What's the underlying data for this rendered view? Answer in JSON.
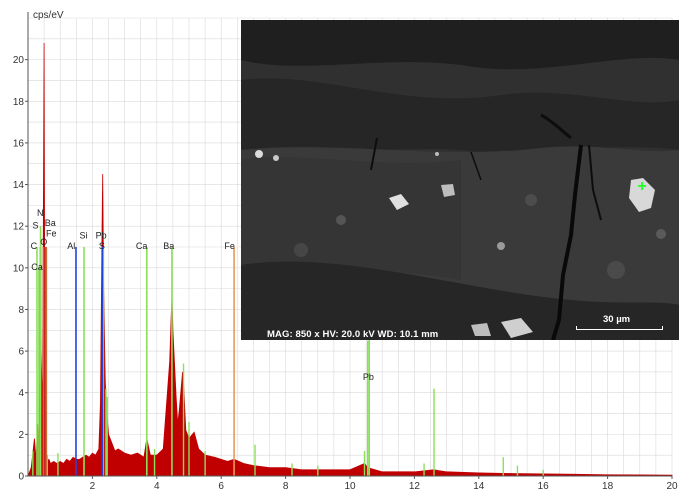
{
  "chart_data": {
    "type": "line",
    "title": "",
    "ylabel": "cps/eV",
    "xlabel": "",
    "xlim": [
      0,
      20
    ],
    "ylim": [
      0,
      22
    ],
    "x_ticks": [
      2,
      4,
      6,
      8,
      10,
      12,
      14,
      16,
      18,
      20
    ],
    "y_ticks": [
      0,
      2,
      4,
      6,
      8,
      10,
      12,
      14,
      16,
      18,
      20
    ],
    "grid": true,
    "spectrum": {
      "color": "#c00000",
      "x": [
        0.0,
        0.1,
        0.2,
        0.25,
        0.3,
        0.35,
        0.4,
        0.45,
        0.5,
        0.52,
        0.55,
        0.6,
        0.65,
        0.7,
        0.8,
        0.9,
        1.0,
        1.1,
        1.2,
        1.3,
        1.4,
        1.5,
        1.6,
        1.7,
        1.8,
        1.9,
        2.0,
        2.1,
        2.2,
        2.25,
        2.3,
        2.32,
        2.35,
        2.4,
        2.45,
        2.5,
        2.6,
        2.7,
        2.8,
        2.9,
        3.0,
        3.2,
        3.4,
        3.6,
        3.69,
        3.8,
        4.0,
        4.2,
        4.4,
        4.47,
        4.5,
        4.6,
        4.65,
        4.7,
        4.8,
        4.83,
        4.9,
        5.0,
        5.16,
        5.3,
        5.5,
        5.8,
        6.0,
        6.2,
        6.4,
        6.7,
        7.0,
        7.5,
        8.0,
        8.5,
        9.0,
        9.5,
        10.0,
        10.45,
        10.55,
        11.0,
        11.5,
        12.0,
        12.6,
        13.0,
        14.0,
        15.0,
        16.0,
        17.0,
        18.0,
        19.0,
        20.0
      ],
      "y": [
        0.0,
        0.4,
        1.8,
        0.8,
        2.5,
        1.2,
        6.5,
        3.0,
        20.8,
        8.0,
        1.5,
        0.7,
        0.8,
        0.6,
        0.7,
        0.6,
        0.7,
        0.6,
        0.8,
        0.7,
        0.9,
        0.8,
        0.8,
        0.9,
        1.0,
        0.9,
        1.1,
        1.0,
        1.3,
        3.5,
        12.0,
        14.5,
        9.0,
        4.5,
        3.0,
        2.0,
        1.6,
        1.2,
        1.3,
        1.2,
        1.1,
        1.0,
        1.1,
        0.9,
        1.8,
        1.0,
        1.0,
        1.3,
        5.5,
        8.7,
        7.0,
        3.8,
        2.5,
        3.2,
        5.0,
        4.5,
        2.2,
        1.8,
        2.1,
        1.3,
        1.0,
        0.9,
        0.8,
        0.7,
        0.8,
        0.6,
        0.5,
        0.4,
        0.4,
        0.3,
        0.3,
        0.3,
        0.3,
        0.6,
        0.4,
        0.2,
        0.2,
        0.2,
        0.3,
        0.2,
        0.15,
        0.12,
        0.1,
        0.08,
        0.06,
        0.05,
        0.04
      ]
    },
    "element_lines": [
      {
        "label": "C",
        "x": 0.28,
        "height": 11,
        "color": "#8be05a"
      },
      {
        "label": "Ca",
        "x": 0.34,
        "height": 10,
        "color": "#8be05a"
      },
      {
        "label": "S",
        "x": 0.39,
        "height": 11,
        "color": "#2222cc"
      },
      {
        "label": "N",
        "x": 0.39,
        "height": 12,
        "color": "#8be05a"
      },
      {
        "label": "Ba",
        "x": 0.48,
        "height": 11,
        "color": "#cc6a33"
      },
      {
        "label": "Fe",
        "x": 0.57,
        "height": 11,
        "color": "#cc6a33"
      },
      {
        "label": "O",
        "x": 0.52,
        "height": 11,
        "color": "#cc2222"
      },
      {
        "label": "Al",
        "x": 1.49,
        "height": 11,
        "color": "#2244dd"
      },
      {
        "label": "Si",
        "x": 1.74,
        "height": 11,
        "color": "#8be05a"
      },
      {
        "label": "Pb",
        "x": 2.34,
        "height": 11,
        "color": "#8be05a"
      },
      {
        "label": "S",
        "x": 2.31,
        "height": 11,
        "color": "#2244dd"
      },
      {
        "label": "Ca",
        "x": 3.69,
        "height": 11,
        "color": "#8be05a"
      },
      {
        "label": "Ba",
        "x": 4.47,
        "height": 11,
        "color": "#8be05a"
      },
      {
        "label": "Fe",
        "x": 6.4,
        "height": 11,
        "color": "#e89a5a"
      },
      {
        "label": "Pb",
        "x": 10.55,
        "height": 6.5,
        "color": "#8be05a"
      }
    ],
    "element_labels": [
      {
        "text": "N",
        "x": 0.28,
        "y": 12.5
      },
      {
        "text": "S",
        "x": 0.14,
        "y": 11.9
      },
      {
        "text": "Ba",
        "x": 0.52,
        "y": 12.0
      },
      {
        "text": "Fe",
        "x": 0.56,
        "y": 11.5
      },
      {
        "text": "O",
        "x": 0.38,
        "y": 11.1
      },
      {
        "text": "C",
        "x": 0.08,
        "y": 10.9
      },
      {
        "text": "Ca",
        "x": 0.1,
        "y": 9.9
      },
      {
        "text": "Al",
        "x": 1.22,
        "y": 10.9
      },
      {
        "text": "Si",
        "x": 1.6,
        "y": 11.4
      },
      {
        "text": "Pb",
        "x": 2.1,
        "y": 11.4
      },
      {
        "text": "S",
        "x": 2.2,
        "y": 10.9
      },
      {
        "text": "Ca",
        "x": 3.35,
        "y": 10.9
      },
      {
        "text": "Ba",
        "x": 4.2,
        "y": 10.9
      },
      {
        "text": "Fe",
        "x": 6.1,
        "y": 10.9
      },
      {
        "text": "Pb",
        "x": 10.4,
        "y": 4.6
      }
    ],
    "minor_green_lines": [
      {
        "x": 0.15,
        "height": 1.2
      },
      {
        "x": 0.6,
        "height": 1.0
      },
      {
        "x": 0.93,
        "height": 1.1
      },
      {
        "x": 2.42,
        "height": 4.2
      },
      {
        "x": 2.46,
        "height": 3.8
      },
      {
        "x": 3.93,
        "height": 1.3
      },
      {
        "x": 4.83,
        "height": 5.4
      },
      {
        "x": 5.0,
        "height": 2.6
      },
      {
        "x": 5.5,
        "height": 1.2
      },
      {
        "x": 7.05,
        "height": 1.5
      },
      {
        "x": 8.2,
        "height": 0.6
      },
      {
        "x": 9.0,
        "height": 0.5
      },
      {
        "x": 10.45,
        "height": 1.2
      },
      {
        "x": 10.6,
        "height": 6.8
      },
      {
        "x": 12.61,
        "height": 4.2
      },
      {
        "x": 12.3,
        "height": 0.6
      },
      {
        "x": 14.76,
        "height": 0.9
      },
      {
        "x": 15.2,
        "height": 0.5
      },
      {
        "x": 16.0,
        "height": 0.3
      }
    ]
  },
  "sem": {
    "info_text": "MAG: 850 x  HV: 20.0 kV  WD: 10.1 mm",
    "scale_label": "30 µm",
    "marker": "+"
  }
}
